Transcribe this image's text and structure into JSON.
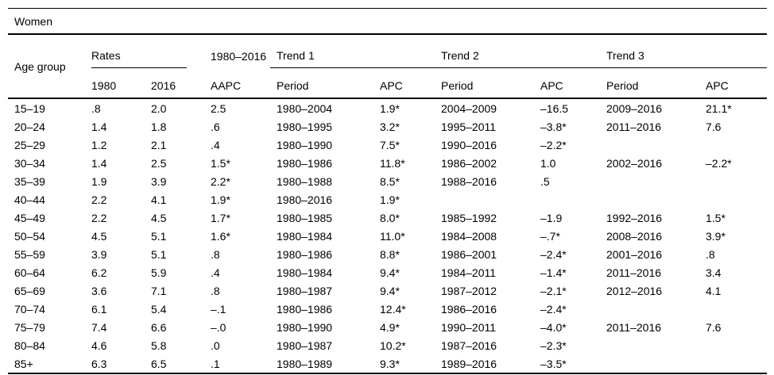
{
  "title": "Women",
  "colors": {
    "text": "#000000",
    "background": "#ffffff",
    "rule": "#000000"
  },
  "headers": {
    "age_group": "Age group",
    "rates": "Rates",
    "aapc_period": "1980–2016",
    "trend1": "Trend 1",
    "trend2": "Trend 2",
    "trend3": "Trend 3",
    "year_1980": "1980",
    "year_2016": "2016",
    "aapc": "AAPC",
    "period": "Period",
    "apc": "APC"
  },
  "rows": [
    {
      "age": "15–19",
      "r1980": ".8",
      "r2016": "2.0",
      "aapc": "2.5",
      "t1p": "1980–2004",
      "t1a": "1.9*",
      "t2p": "2004–2009",
      "t2a": "–16.5",
      "t3p": "2009–2016",
      "t3a": "21.1*"
    },
    {
      "age": "20–24",
      "r1980": "1.4",
      "r2016": "1.8",
      "aapc": ".6",
      "t1p": "1980–1995",
      "t1a": "3.2*",
      "t2p": "1995–2011",
      "t2a": "–3.8*",
      "t3p": "2011–2016",
      "t3a": "7.6"
    },
    {
      "age": "25–29",
      "r1980": "1.2",
      "r2016": "2.1",
      "aapc": ".4",
      "t1p": "1980–1990",
      "t1a": "7.5*",
      "t2p": "1990–2016",
      "t2a": "–2.2*",
      "t3p": "",
      "t3a": ""
    },
    {
      "age": "30–34",
      "r1980": "1.4",
      "r2016": "2.5",
      "aapc": "1.5*",
      "t1p": "1980–1986",
      "t1a": "11.8*",
      "t2p": "1986–2002",
      "t2a": "1.0",
      "t3p": "2002–2016",
      "t3a": "–2.2*"
    },
    {
      "age": "35–39",
      "r1980": "1.9",
      "r2016": "3.9",
      "aapc": "2.2*",
      "t1p": "1980–1988",
      "t1a": "8.5*",
      "t2p": "1988–2016",
      "t2a": ".5",
      "t3p": "",
      "t3a": ""
    },
    {
      "age": "40–44",
      "r1980": "2.2",
      "r2016": "4.1",
      "aapc": "1.9*",
      "t1p": "1980–2016",
      "t1a": "1.9*",
      "t2p": "",
      "t2a": "",
      "t3p": "",
      "t3a": ""
    },
    {
      "age": "45–49",
      "r1980": "2.2",
      "r2016": "4.5",
      "aapc": "1.7*",
      "t1p": "1980–1985",
      "t1a": "8.0*",
      "t2p": "1985–1992",
      "t2a": "–1.9",
      "t3p": "1992–2016",
      "t3a": "1.5*"
    },
    {
      "age": "50–54",
      "r1980": "4.5",
      "r2016": "5.1",
      "aapc": "1.6*",
      "t1p": "1980–1984",
      "t1a": "11.0*",
      "t2p": "1984–2008",
      "t2a": "–.7*",
      "t3p": "2008–2016",
      "t3a": "3.9*"
    },
    {
      "age": "55–59",
      "r1980": "3.9",
      "r2016": "5.1",
      "aapc": ".8",
      "t1p": "1980–1986",
      "t1a": "8.8*",
      "t2p": "1986–2001",
      "t2a": "–2.4*",
      "t3p": "2001–2016",
      "t3a": ".8"
    },
    {
      "age": "60–64",
      "r1980": "6.2",
      "r2016": "5.9",
      "aapc": ".4",
      "t1p": "1980–1984",
      "t1a": "9.4*",
      "t2p": "1984–2011",
      "t2a": "–1.4*",
      "t3p": "2011–2016",
      "t3a": "3.4"
    },
    {
      "age": "65–69",
      "r1980": "3.6",
      "r2016": "7.1",
      "aapc": ".8",
      "t1p": "1980–1987",
      "t1a": "9.4*",
      "t2p": "1987–2012",
      "t2a": "–2.1*",
      "t3p": "2012–2016",
      "t3a": "4.1"
    },
    {
      "age": "70–74",
      "r1980": "6.1",
      "r2016": "5.4",
      "aapc": "–.1",
      "t1p": "1980–1986",
      "t1a": "12.4*",
      "t2p": "1986–2016",
      "t2a": "–2.4*",
      "t3p": "",
      "t3a": ""
    },
    {
      "age": "75–79",
      "r1980": "7.4",
      "r2016": "6.6",
      "aapc": "–.0",
      "t1p": "1980–1990",
      "t1a": "4.9*",
      "t2p": "1990–2011",
      "t2a": "–4.0*",
      "t3p": "2011–2016",
      "t3a": "7.6"
    },
    {
      "age": "80–84",
      "r1980": "4.6",
      "r2016": "5.8",
      "aapc": ".0",
      "t1p": "1980–1987",
      "t1a": "10.2*",
      "t2p": "1987–2016",
      "t2a": "–2.3*",
      "t3p": "",
      "t3a": ""
    },
    {
      "age": "85+",
      "r1980": "6.3",
      "r2016": "6.5",
      "aapc": ".1",
      "t1p": "1980–1989",
      "t1a": "9.3*",
      "t2p": "1989–2016",
      "t2a": "–3.5*",
      "t3p": "",
      "t3a": ""
    }
  ]
}
